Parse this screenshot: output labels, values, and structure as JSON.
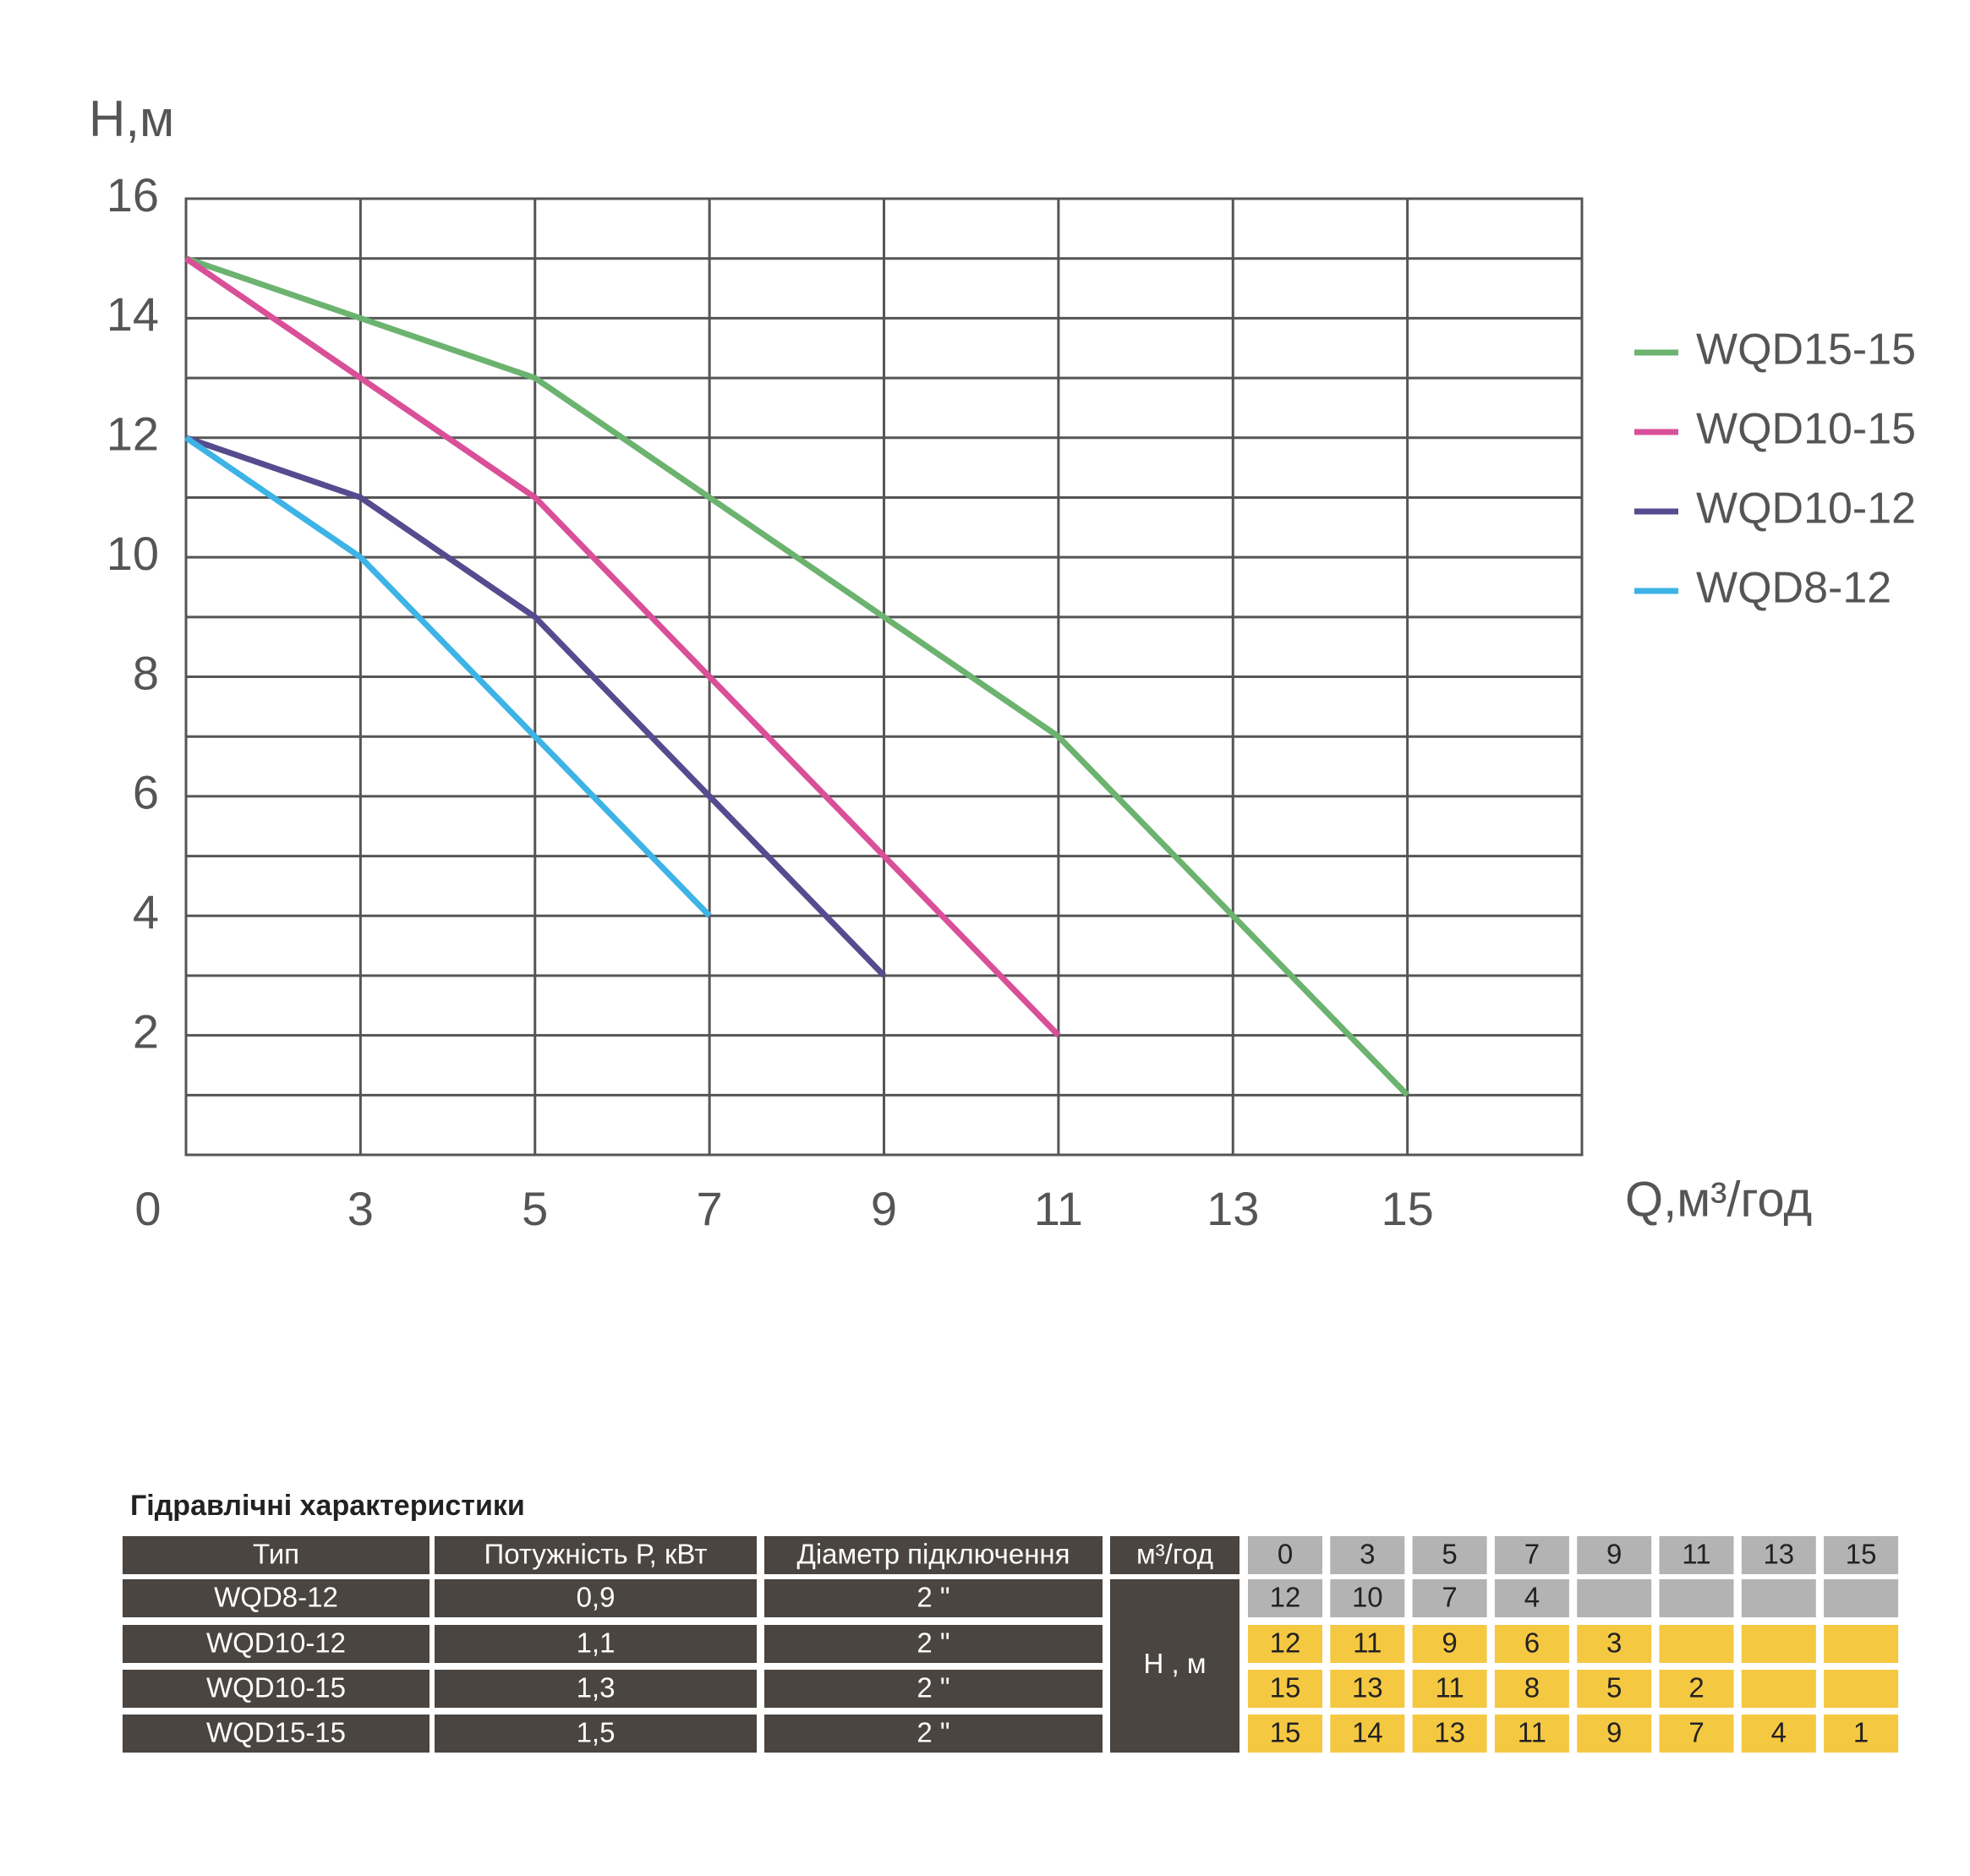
{
  "chart_data": {
    "type": "line",
    "y_label": "Н,м",
    "x_label": "Q,м³/год",
    "categories": [
      "0",
      "3",
      "5",
      "7",
      "9",
      "11",
      "13",
      "15"
    ],
    "series": [
      {
        "name": "WQD15-15",
        "color": "#6bb36f",
        "values": [
          15,
          14,
          13,
          11,
          9,
          7,
          4,
          1
        ]
      },
      {
        "name": "WQD10-15",
        "color": "#d94f98",
        "values": [
          15,
          13,
          11,
          8,
          5,
          2,
          null,
          null
        ]
      },
      {
        "name": "WQD10-12",
        "color": "#564b8e",
        "values": [
          12,
          11,
          9,
          6,
          3,
          null,
          null,
          null
        ]
      },
      {
        "name": "WQD8-12",
        "color": "#3db3e6",
        "values": [
          12,
          10,
          7,
          4,
          null,
          null,
          null,
          null
        ]
      }
    ],
    "ylim": [
      0,
      16
    ],
    "yticks": [
      2,
      4,
      6,
      8,
      10,
      12,
      14,
      16
    ],
    "grid": true,
    "legend": "right"
  },
  "table": {
    "title": "Гідравлічні характеристики",
    "header": [
      "Тип",
      "Потужність Р, кВт",
      "Діаметр підключення",
      "м³/год"
    ],
    "head_label": "Н , м",
    "power": [
      "0,9",
      "1,1",
      "1,3",
      "1,5"
    ],
    "diameter": [
      "2 \"",
      "2 \"",
      "2 \"",
      "2 \""
    ]
  }
}
